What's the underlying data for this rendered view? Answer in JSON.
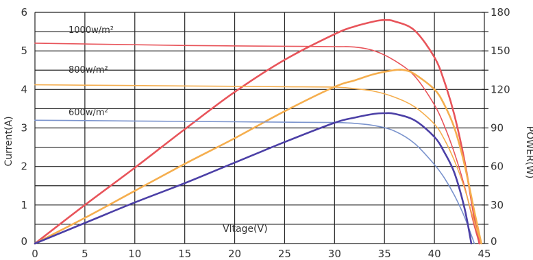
{
  "chart_data": {
    "type": "line",
    "xlabel": "Vltage(V)",
    "ylabel_left": "Current(A)",
    "ylabel_right": "POWER(W)",
    "xlim": [
      0,
      45
    ],
    "ylim_left": [
      0,
      6
    ],
    "ylim_right": [
      0,
      180
    ],
    "grid": true,
    "x_ticks": [
      0,
      5,
      10,
      15,
      20,
      25,
      30,
      35,
      40,
      45
    ],
    "y_left_ticks": [
      0,
      1,
      2,
      3,
      4,
      5,
      6
    ],
    "y_right_ticks": [
      0,
      30,
      60,
      90,
      120,
      150,
      180
    ],
    "series": [
      {
        "name": "1000w/m²",
        "kind": "current",
        "axis": "left",
        "color": "#e8545a",
        "x": [
          0,
          5,
          10,
          15,
          20,
          25,
          30,
          32,
          34,
          36,
          38,
          40,
          41,
          42,
          43,
          44,
          44.5
        ],
        "values": [
          5.2,
          5.18,
          5.16,
          5.14,
          5.13,
          5.12,
          5.11,
          5.1,
          5.0,
          4.75,
          4.35,
          3.6,
          3.05,
          2.35,
          1.5,
          0.45,
          0
        ]
      },
      {
        "name": "1000w/m²",
        "kind": "power",
        "axis": "right",
        "color": "#e8545a",
        "x": [
          0,
          5,
          10,
          15,
          20,
          25,
          30,
          32,
          34,
          35,
          36,
          38,
          40,
          41,
          42,
          43,
          44,
          44.5
        ],
        "values": [
          0,
          30,
          59,
          89,
          118,
          143,
          163,
          169,
          173,
          174,
          173,
          166,
          145,
          126,
          100,
          65,
          20,
          0
        ]
      },
      {
        "name": "800w/m²",
        "kind": "current",
        "axis": "left",
        "color": "#f5ae4e",
        "x": [
          0,
          5,
          10,
          15,
          20,
          25,
          30,
          32,
          34,
          36,
          38,
          40,
          41,
          42,
          43,
          44,
          44.7
        ],
        "values": [
          4.12,
          4.11,
          4.1,
          4.09,
          4.08,
          4.07,
          4.06,
          4.02,
          3.95,
          3.8,
          3.55,
          3.1,
          2.7,
          2.15,
          1.45,
          0.55,
          0
        ]
      },
      {
        "name": "800w/m²",
        "kind": "power",
        "axis": "right",
        "color": "#f5ae4e",
        "x": [
          0,
          5,
          10,
          15,
          20,
          25,
          30,
          32,
          34,
          36,
          37,
          38,
          40,
          41,
          42,
          43,
          44,
          44.7
        ],
        "values": [
          0,
          20,
          41,
          62,
          82,
          103,
          122,
          127,
          132,
          135,
          135,
          132,
          120,
          108,
          90,
          62,
          25,
          0
        ]
      },
      {
        "name": "600w/m²",
        "kind": "current",
        "axis": "left",
        "color": "#7a93cd",
        "x": [
          0,
          5,
          10,
          15,
          20,
          25,
          30,
          32,
          34,
          36,
          38,
          40,
          41,
          42,
          43,
          44
        ],
        "values": [
          3.2,
          3.19,
          3.18,
          3.17,
          3.16,
          3.15,
          3.14,
          3.12,
          3.06,
          2.92,
          2.6,
          2.05,
          1.7,
          1.25,
          0.7,
          0
        ]
      },
      {
        "name": "600w/m²",
        "kind": "power",
        "axis": "right",
        "color": "#4b3fa6",
        "x": [
          0,
          5,
          10,
          15,
          20,
          25,
          30,
          32,
          34,
          35,
          36,
          38,
          40,
          41,
          42,
          43,
          43.7
        ],
        "values": [
          0,
          16,
          32,
          47,
          63,
          79,
          94,
          98,
          101,
          101.5,
          101,
          96,
          83,
          71,
          55,
          28,
          0
        ]
      }
    ],
    "annotations": [
      "1000w/m²",
      "800w/m²",
      "600w/m²"
    ]
  }
}
